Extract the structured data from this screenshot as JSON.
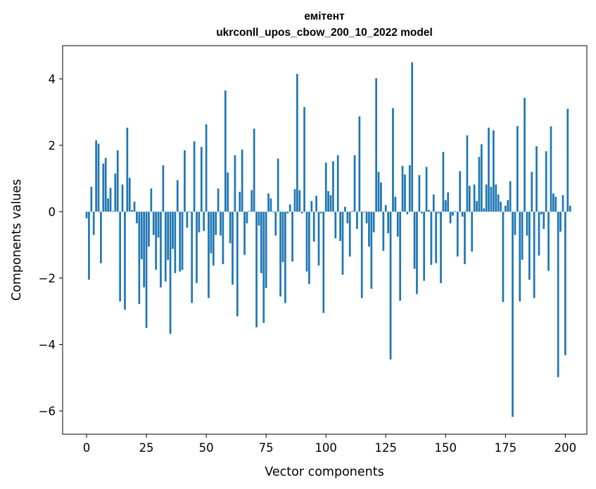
{
  "chart_data": {
    "type": "bar",
    "title": "емітент",
    "subtitle": "ukrconll_upos_cbow_200_10_2022 model",
    "xlabel": "Vector components",
    "ylabel": "Components values",
    "xlim": [
      -10,
      209
    ],
    "ylim": [
      -6.7,
      5.0
    ],
    "xticks": [
      0,
      25,
      50,
      75,
      100,
      125,
      150,
      175,
      200
    ],
    "yticks": [
      -6,
      -4,
      -2,
      0,
      2,
      4
    ],
    "ytick_labels": [
      "−6",
      "−4",
      "−2",
      "0",
      "2",
      "4"
    ],
    "bar_color": "#1f77b4",
    "grid": false,
    "values": [
      -0.2,
      -2.05,
      0.75,
      -0.7,
      2.15,
      2.05,
      -1.55,
      1.45,
      1.62,
      0.4,
      0.72,
      0.02,
      1.15,
      1.85,
      -2.7,
      0.82,
      -2.95,
      2.53,
      1.02,
      0.05,
      0.3,
      -0.35,
      -2.78,
      -1.43,
      -2.28,
      -3.5,
      -1.05,
      0.7,
      -0.7,
      -1.75,
      -0.78,
      -2.28,
      1.4,
      -2.1,
      -1.45,
      -3.68,
      -1.12,
      -1.85,
      0.95,
      -1.8,
      -1.75,
      1.85,
      -0.48,
      -0.02,
      -2.75,
      2.12,
      -2.15,
      -0.62,
      1.95,
      -0.58,
      2.63,
      -2.6,
      -1.25,
      -1.62,
      -0.7,
      0.7,
      -0.72,
      -1.58,
      3.65,
      1.18,
      -0.95,
      -2.2,
      1.7,
      -3.15,
      0.6,
      1.87,
      -1.3,
      -0.35,
      0.02,
      0.65,
      2.5,
      -3.48,
      -0.42,
      -1.85,
      -3.35,
      -2.3,
      0.55,
      0.4,
      -0.02,
      -0.72,
      1.6,
      -2.55,
      -1.52,
      -2.75,
      -0.05,
      0.22,
      -1.5,
      0.68,
      4.15,
      0.65,
      -0.05,
      3.15,
      -1.8,
      -2.18,
      0.32,
      -0.9,
      0.48,
      -1.62,
      -0.05,
      -3.05,
      1.48,
      0.62,
      0.5,
      1.52,
      -0.8,
      1.7,
      -0.88,
      -1.9,
      0.15,
      -0.35,
      -1.35,
      0.02,
      1.7,
      -0.52,
      2.87,
      -2.6,
      -0.02,
      -0.35,
      -1.05,
      -2.32,
      -0.62,
      4.02,
      1.2,
      0.88,
      -1.18,
      0.2,
      -0.65,
      -4.45,
      3.12,
      0.45,
      -0.75,
      -2.68,
      1.38,
      1.12,
      -0.08,
      1.4,
      4.5,
      -1.72,
      -2.48,
      1.1,
      -0.05,
      -2.08,
      1.35,
      0.05,
      -1.6,
      0.52,
      -1.55,
      -0.05,
      -2.15,
      1.8,
      0.35,
      0.58,
      -0.35,
      -0.12,
      0.02,
      -1.35,
      1.22,
      -0.15,
      -1.58,
      2.3,
      0.78,
      -1.2,
      0.82,
      0.32,
      1.65,
      2.03,
      0.1,
      0.82,
      2.53,
      0.75,
      2.45,
      0.82,
      0.52,
      0.3,
      -2.72,
      0.18,
      0.35,
      0.92,
      -6.18,
      -0.7,
      2.58,
      -2.7,
      -1.45,
      3.43,
      -0.72,
      -2.05,
      1.2,
      -2.6,
      1.97,
      -1.32,
      -0.08,
      -0.52,
      1.82,
      -1.78,
      2.57,
      0.55,
      0.45,
      -4.98,
      -0.6,
      0.5,
      -4.32,
      3.1,
      0.18
    ]
  }
}
